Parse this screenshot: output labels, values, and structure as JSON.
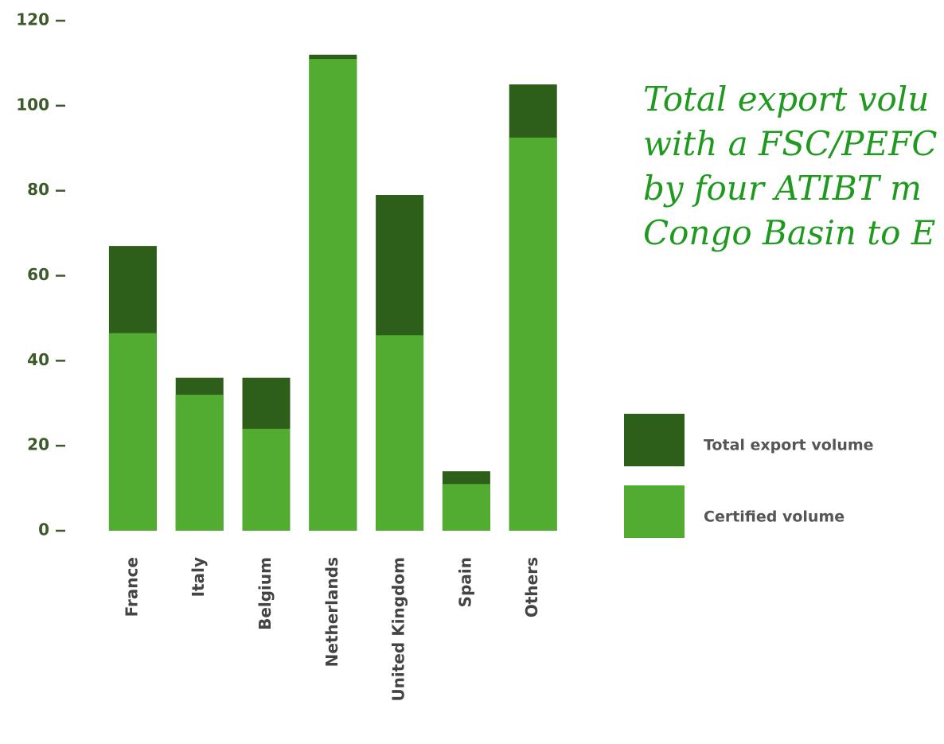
{
  "chart_data": {
    "type": "bar",
    "title_lines": [
      "Total export volu",
      "with a FSC/PEFC",
      "by four ATIBT m",
      "Congo Basin to E"
    ],
    "categories": [
      "France",
      "Italy",
      "Belgium",
      "Netherlands",
      "United Kingdom",
      "Spain",
      "Others"
    ],
    "series": [
      {
        "name": "Total export volume",
        "color": "#2d5e1a",
        "values": [
          67,
          36,
          36,
          112,
          79,
          14,
          105
        ]
      },
      {
        "name": "Certified volume",
        "color": "#52ac31",
        "values": [
          46.5,
          32,
          24,
          111,
          46,
          11,
          92.5
        ]
      }
    ],
    "ylim": [
      0,
      120
    ],
    "yticks": [
      0,
      20,
      40,
      60,
      80,
      100,
      120
    ],
    "legend": "right"
  }
}
